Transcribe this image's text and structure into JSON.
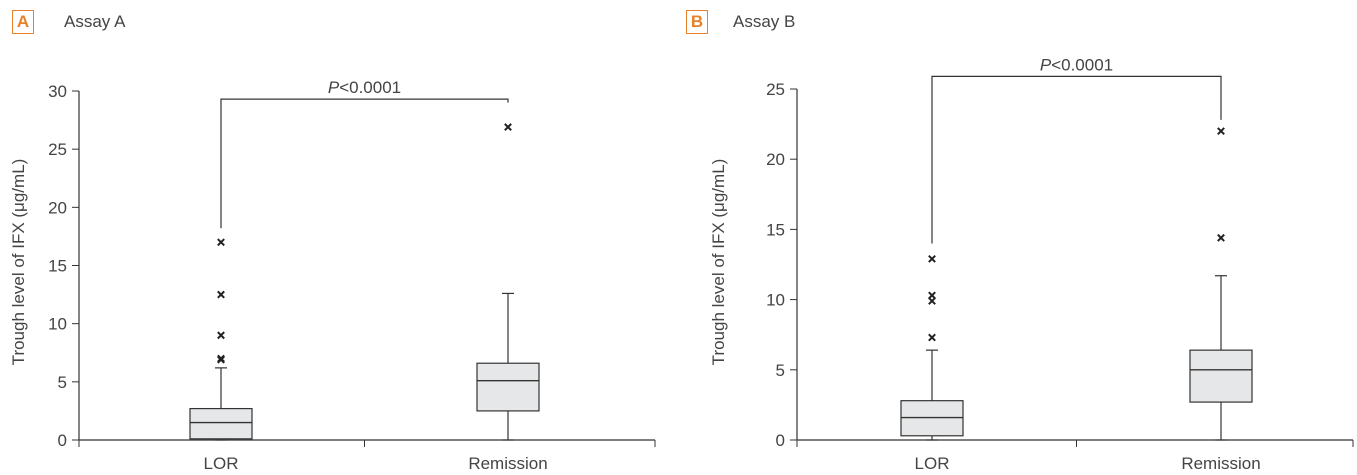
{
  "panels": [
    {
      "badge": "A",
      "title": "Assay A"
    },
    {
      "badge": "B",
      "title": "Assay B"
    }
  ],
  "chart_data": [
    {
      "type": "box",
      "title": "Assay A",
      "ylabel": "Trough level of IFX (μg/mL)",
      "xlabel": "",
      "ylim": [
        0,
        30
      ],
      "yticks": [
        0,
        5,
        10,
        15,
        20,
        25,
        30
      ],
      "grid": false,
      "categories": [
        "LOR",
        "Remission"
      ],
      "boxes": [
        {
          "category": "LOR",
          "whisker_low": 0.0,
          "q1": 0.1,
          "median": 1.5,
          "q3": 2.7,
          "whisker_high": 6.2,
          "outliers": [
            6.9,
            7.0,
            9.0,
            12.5,
            17.0
          ]
        },
        {
          "category": "Remission",
          "whisker_low": 0.0,
          "q1": 2.5,
          "median": 5.1,
          "q3": 6.6,
          "whisker_high": 12.6,
          "outliers": [
            26.9
          ]
        }
      ],
      "annotation": {
        "p_italic": "P",
        "p_rest": "<0.0001",
        "bracket_left": 18.2,
        "bracket_right": 29.0,
        "bracket_top": 29.3
      }
    },
    {
      "type": "box",
      "title": "Assay B",
      "ylabel": "Trough level of IFX (μg/mL)",
      "xlabel": "",
      "ylim": [
        0,
        25
      ],
      "yticks": [
        0,
        5,
        10,
        15,
        20,
        25
      ],
      "grid": false,
      "categories": [
        "LOR",
        "Remission"
      ],
      "boxes": [
        {
          "category": "LOR",
          "whisker_low": 0.0,
          "q1": 0.3,
          "median": 1.6,
          "q3": 2.8,
          "whisker_high": 6.4,
          "outliers": [
            7.3,
            9.9,
            10.3,
            12.9
          ]
        },
        {
          "category": "Remission",
          "whisker_low": 0.0,
          "q1": 2.7,
          "median": 5.0,
          "q3": 6.4,
          "whisker_high": 11.7,
          "outliers": [
            14.4,
            22.0
          ]
        }
      ],
      "annotation": {
        "p_italic": "P",
        "p_rest": "<0.0001",
        "bracket_left": 14.0,
        "bracket_right": 22.8,
        "bracket_top": 25.9
      }
    }
  ]
}
